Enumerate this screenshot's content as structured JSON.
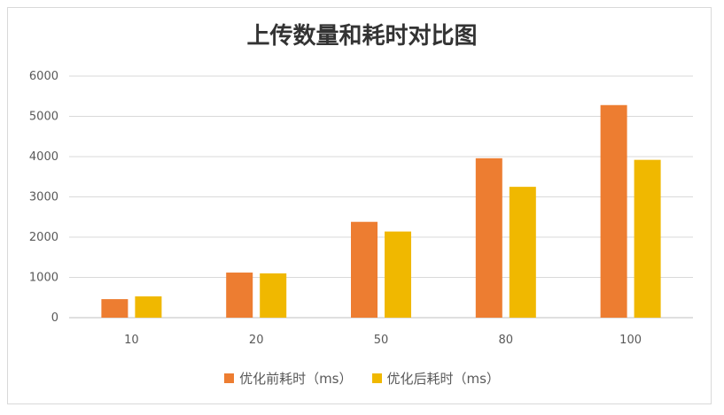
{
  "chart_data": {
    "type": "bar",
    "title": "上传数量和耗时对比图",
    "categories": [
      "10",
      "20",
      "50",
      "80",
      "100"
    ],
    "series": [
      {
        "name": "优化前耗时（ms）",
        "color": "#ED7D31",
        "values": [
          460,
          1120,
          2380,
          3960,
          5280
        ]
      },
      {
        "name": "优化后耗时（ms）",
        "color": "#F0B800",
        "values": [
          530,
          1100,
          2140,
          3250,
          3920
        ]
      }
    ],
    "ylim": [
      0,
      6000
    ],
    "yticks": [
      0,
      1000,
      2000,
      3000,
      4000,
      5000,
      6000
    ],
    "grid": true,
    "legend": "bottom"
  }
}
